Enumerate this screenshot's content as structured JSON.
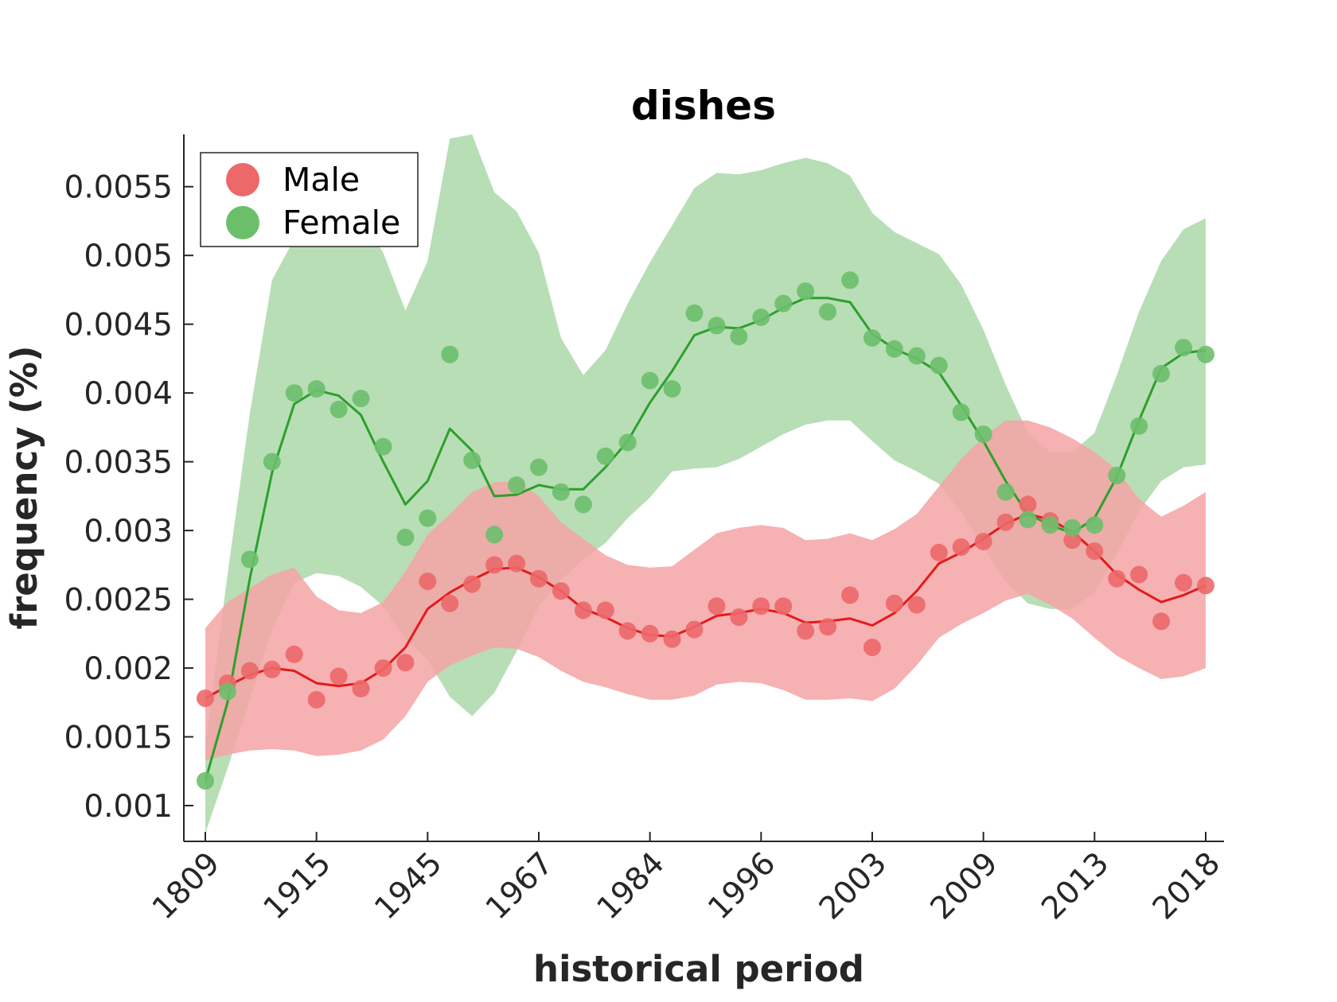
{
  "chart_data": {
    "type": "scatter",
    "title": "dishes",
    "xlabel": "historical period",
    "ylabel": "frequency (%)",
    "x_tick_labels": [
      "1809",
      "1915",
      "1945",
      "1967",
      "1984",
      "1996",
      "2003",
      "2009",
      "2013",
      "2018"
    ],
    "y_ticks": [
      0.001,
      0.0015,
      0.002,
      0.0025,
      0.003,
      0.0035,
      0.004,
      0.0045,
      0.005,
      0.0055
    ],
    "y_tick_labels": [
      "0.001",
      "0.0015",
      "0.002",
      "0.0025",
      "0.003",
      "0.0035",
      "0.004",
      "0.0045",
      "0.005",
      "0.0055"
    ],
    "ylim": [
      0.00074,
      0.00588
    ],
    "legend_position": "top-left",
    "grid": false,
    "series": [
      {
        "name": "Male",
        "color": "#e41a1c",
        "marker_color": "#ec6869",
        "band_color": "#f4a3a4",
        "points": [
          0.00178,
          0.00189,
          0.00198,
          0.00199,
          0.0021,
          0.00177,
          0.00194,
          0.00185,
          0.002,
          0.00204,
          0.00263,
          0.00247,
          0.00261,
          0.00275,
          0.00276,
          0.00265,
          0.00256,
          0.00242,
          0.00242,
          0.00227,
          0.00225,
          0.00221,
          0.00228,
          0.00245,
          0.00237,
          0.00245,
          0.00245,
          0.00227,
          0.0023,
          0.00253,
          0.00215,
          0.00247,
          0.00246,
          0.00284,
          0.00288,
          0.00292,
          0.00306,
          0.00319,
          0.00307,
          0.00293,
          0.00285,
          0.00265,
          0.00268,
          0.00234,
          0.00262,
          0.0026
        ],
        "trend": [
          0.00178,
          0.00187,
          0.00195,
          0.002,
          0.00198,
          0.00189,
          0.00187,
          0.00189,
          0.00199,
          0.00215,
          0.00243,
          0.00255,
          0.00264,
          0.00272,
          0.00273,
          0.00266,
          0.00256,
          0.00243,
          0.00237,
          0.00229,
          0.00224,
          0.00223,
          0.0023,
          0.00238,
          0.0024,
          0.00243,
          0.0024,
          0.00233,
          0.00234,
          0.00236,
          0.00231,
          0.0024,
          0.00256,
          0.00276,
          0.00284,
          0.00294,
          0.00305,
          0.00312,
          0.00308,
          0.00299,
          0.00285,
          0.00268,
          0.00257,
          0.00248,
          0.00253,
          0.0026
        ],
        "upper": [
          0.00229,
          0.00248,
          0.00258,
          0.00268,
          0.00273,
          0.00252,
          0.00242,
          0.0024,
          0.00248,
          0.0027,
          0.00297,
          0.00312,
          0.00328,
          0.00335,
          0.00336,
          0.00325,
          0.00306,
          0.00294,
          0.00282,
          0.00275,
          0.00273,
          0.00274,
          0.00286,
          0.00298,
          0.00302,
          0.00304,
          0.00302,
          0.00293,
          0.00294,
          0.00298,
          0.00293,
          0.00301,
          0.00312,
          0.00332,
          0.00352,
          0.00368,
          0.0038,
          0.0038,
          0.00375,
          0.00367,
          0.00357,
          0.00344,
          0.00323,
          0.0031,
          0.00318,
          0.00328
        ],
        "lower": [
          0.00133,
          0.00137,
          0.0014,
          0.00141,
          0.0014,
          0.00136,
          0.00137,
          0.0014,
          0.00148,
          0.00165,
          0.0019,
          0.00202,
          0.00209,
          0.00215,
          0.00214,
          0.00208,
          0.00198,
          0.0019,
          0.00186,
          0.00181,
          0.00177,
          0.00177,
          0.0018,
          0.00188,
          0.0019,
          0.00189,
          0.00184,
          0.00177,
          0.00177,
          0.00178,
          0.00176,
          0.00185,
          0.00202,
          0.00222,
          0.00232,
          0.0024,
          0.00249,
          0.00254,
          0.00246,
          0.00236,
          0.00222,
          0.00209,
          0.002,
          0.00192,
          0.00194,
          0.002
        ]
      },
      {
        "name": "Female",
        "color": "#2ca02c",
        "marker_color": "#6bbf6b",
        "band_color": "#acd8a9",
        "points": [
          0.00118,
          0.00183,
          0.00279,
          0.0035,
          0.004,
          0.00403,
          0.00388,
          0.00396,
          0.00361,
          0.00295,
          0.00309,
          0.00428,
          0.00351,
          0.00297,
          0.00333,
          0.00346,
          0.00328,
          0.00319,
          0.00354,
          0.00364,
          0.00409,
          0.00403,
          0.00458,
          0.00449,
          0.00441,
          0.00455,
          0.00465,
          0.00474,
          0.00459,
          0.00482,
          0.0044,
          0.00432,
          0.00427,
          0.0042,
          0.00386,
          0.0037,
          0.00328,
          0.00308,
          0.00304,
          0.00302,
          0.00304,
          0.0034,
          0.00376,
          0.00414,
          0.00433,
          0.00428
        ],
        "trend": [
          0.00118,
          0.00175,
          0.00265,
          0.00342,
          0.00392,
          0.00402,
          0.00398,
          0.00384,
          0.0035,
          0.00319,
          0.00336,
          0.00374,
          0.00358,
          0.00325,
          0.00326,
          0.00333,
          0.0033,
          0.0033,
          0.00346,
          0.00365,
          0.00393,
          0.00416,
          0.00442,
          0.00448,
          0.00447,
          0.00453,
          0.00462,
          0.00469,
          0.00469,
          0.00466,
          0.00443,
          0.00432,
          0.00425,
          0.00415,
          0.00391,
          0.00365,
          0.00336,
          0.00312,
          0.00304,
          0.00298,
          0.00309,
          0.00339,
          0.0038,
          0.00418,
          0.00429,
          0.00431
        ],
        "upper": [
          0.00143,
          0.00268,
          0.00385,
          0.00482,
          0.00512,
          0.00526,
          0.00536,
          0.00528,
          0.00502,
          0.0046,
          0.00496,
          0.00585,
          0.00588,
          0.00546,
          0.00532,
          0.00502,
          0.0044,
          0.00413,
          0.00431,
          0.00465,
          0.00495,
          0.00522,
          0.00549,
          0.0056,
          0.00559,
          0.00562,
          0.00567,
          0.00571,
          0.00567,
          0.00558,
          0.00531,
          0.00517,
          0.00509,
          0.00501,
          0.00479,
          0.00446,
          0.00406,
          0.00371,
          0.00357,
          0.00357,
          0.00371,
          0.00413,
          0.00459,
          0.00496,
          0.00519,
          0.00527
        ],
        "lower": [
          0.0008,
          0.00127,
          0.00177,
          0.00228,
          0.00262,
          0.00269,
          0.00267,
          0.00259,
          0.00245,
          0.00221,
          0.00206,
          0.00179,
          0.00165,
          0.00182,
          0.00212,
          0.00245,
          0.00264,
          0.00279,
          0.00291,
          0.00309,
          0.00324,
          0.00343,
          0.00345,
          0.00346,
          0.00352,
          0.00361,
          0.0037,
          0.00377,
          0.0038,
          0.0038,
          0.00365,
          0.00351,
          0.00343,
          0.00334,
          0.00313,
          0.00288,
          0.00263,
          0.00247,
          0.00243,
          0.00243,
          0.00255,
          0.00283,
          0.00314,
          0.00336,
          0.00346,
          0.00348
        ]
      }
    ]
  }
}
